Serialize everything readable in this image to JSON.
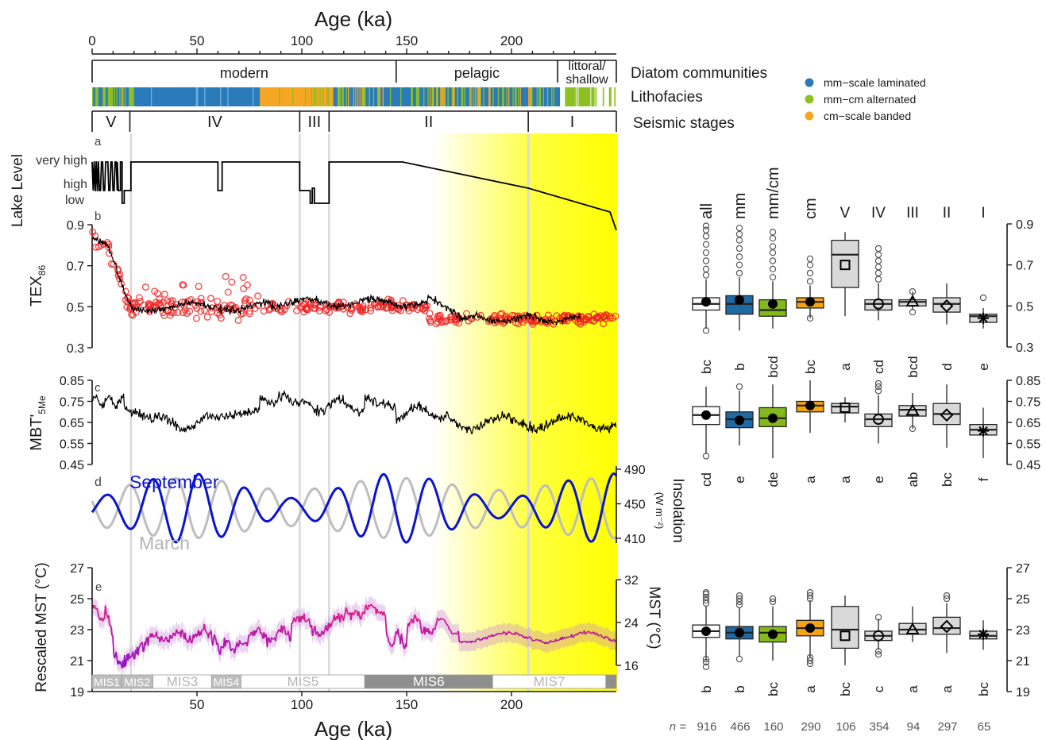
{
  "axis": {
    "top_label": "Age (ka)",
    "bottom_label": "Age (ka)",
    "age_ticks": [
      0,
      50,
      100,
      150,
      200
    ],
    "xlim": [
      0,
      250
    ]
  },
  "strip": {
    "diatom_label": "Diatom communities",
    "litho_label": "Lithofacies",
    "seismic_label": "Seismic stages",
    "diatom_sections": [
      {
        "label": "modern",
        "start": 0,
        "end": 145
      },
      {
        "label": "pelagic",
        "start": 145,
        "end": 222
      },
      {
        "label": "littoral/",
        "label2": "shallow",
        "start": 222,
        "end": 250
      }
    ],
    "seismic_stages": [
      {
        "label": "V",
        "start": 0,
        "end": 18
      },
      {
        "label": "IV",
        "start": 18,
        "end": 99
      },
      {
        "label": "III",
        "start": 99,
        "end": 113
      },
      {
        "label": "II",
        "start": 113,
        "end": 208
      },
      {
        "label": "I",
        "start": 208,
        "end": 250
      }
    ]
  },
  "legend": {
    "items": [
      {
        "label": "mm−scale laminated",
        "color": "#2b7bba"
      },
      {
        "label": "mm−cm alternated",
        "color": "#8dc021"
      },
      {
        "label": "cm−scale banded",
        "color": "#f5a623"
      }
    ]
  },
  "panels": {
    "a": {
      "letter": "a",
      "ylabel": "Lake Level",
      "levels": [
        "very high",
        "high",
        "low"
      ]
    },
    "b": {
      "letter": "b",
      "ylabel_main": "TEX",
      "ylabel_sub": "86",
      "ticks": [
        "0.9",
        "0.7",
        "0.5",
        "0.3"
      ]
    },
    "c": {
      "letter": "c",
      "ylabel_main": "MBT'",
      "ylabel_sub": "5Me",
      "ticks": [
        "0.85",
        "0.75",
        "0.65",
        "0.55",
        "0.45"
      ]
    },
    "d": {
      "letter": "d",
      "september": "September",
      "march": "March",
      "ylabel": "Insolation",
      "yunit": "(W m⁻²)",
      "ticks": [
        "490",
        "450",
        "410"
      ]
    },
    "e": {
      "letter": "e",
      "ylabel": "Rescaled MST (°C)",
      "ylabel_right": "MST (°C)",
      "ticks_left": [
        "27",
        "25",
        "23",
        "21",
        "19"
      ],
      "ticks_right": [
        "32",
        "24",
        "16"
      ]
    }
  },
  "mis": [
    {
      "label": "MIS1",
      "start": 0,
      "end": 14,
      "shade": "light"
    },
    {
      "label": "MIS2",
      "start": 14,
      "end": 29,
      "shade": "light"
    },
    {
      "label": "MIS3",
      "start": 29,
      "end": 57,
      "shade": "white"
    },
    {
      "label": "MIS4",
      "start": 57,
      "end": 71,
      "shade": "light"
    },
    {
      "label": "MIS5",
      "start": 71,
      "end": 130,
      "shade": "white"
    },
    {
      "label": "MIS6",
      "start": 130,
      "end": 191,
      "shade": "dark"
    },
    {
      "label": "MIS7",
      "start": 191,
      "end": 245,
      "shade": "white"
    },
    {
      "label": "",
      "start": 245,
      "end": 250,
      "shade": "dark"
    }
  ],
  "chart_data": {
    "type": "box",
    "groups": [
      "all",
      "mm",
      "mm/cm",
      "cm",
      "V",
      "IV",
      "III",
      "II",
      "I"
    ],
    "group_colors": [
      "#ffffff",
      "#1f6aa5",
      "#84b81b",
      "#f5a30f",
      "#d9d9d9",
      "#d9d9d9",
      "#d9d9d9",
      "#d9d9d9",
      "#d9d9d9"
    ],
    "markers": [
      "dot",
      "dot",
      "dot",
      "dot",
      "square",
      "circle",
      "triangle",
      "diamond",
      "star"
    ],
    "n_label": "n =",
    "n": [
      916,
      466,
      160,
      290,
      106,
      354,
      94,
      297,
      65
    ],
    "tex86": {
      "ylim": [
        0.3,
        0.9
      ],
      "letters": [
        "bc",
        "b",
        "bcd",
        "bc",
        "a",
        "cd",
        "bcd",
        "d",
        "e"
      ],
      "q1": [
        0.48,
        0.46,
        0.45,
        0.49,
        0.59,
        0.48,
        0.5,
        0.47,
        0.42
      ],
      "median": [
        0.51,
        0.51,
        0.48,
        0.52,
        0.75,
        0.51,
        0.52,
        0.51,
        0.45
      ],
      "q3": [
        0.54,
        0.55,
        0.53,
        0.54,
        0.82,
        0.53,
        0.53,
        0.54,
        0.46
      ],
      "mean": [
        0.52,
        0.53,
        0.51,
        0.52,
        0.7,
        0.51,
        0.52,
        0.5,
        0.44
      ],
      "wlo": [
        0.39,
        0.38,
        0.39,
        0.44,
        0.45,
        0.43,
        0.48,
        0.41,
        0.39
      ],
      "whi": [
        0.63,
        0.64,
        0.62,
        0.6,
        0.86,
        0.61,
        0.57,
        0.61,
        0.49
      ],
      "out_hi": [
        [
          0.65,
          0.68,
          0.72,
          0.76,
          0.8,
          0.84,
          0.87,
          0.89
        ],
        [
          0.66,
          0.7,
          0.74,
          0.78,
          0.82,
          0.85,
          0.88
        ],
        [
          0.64,
          0.68,
          0.72,
          0.76,
          0.79,
          0.83,
          0.86
        ],
        [
          0.62,
          0.66,
          0.7,
          0.73
        ],
        [],
        [
          0.63,
          0.66,
          0.69,
          0.72,
          0.75,
          0.78
        ],
        [
          0.57
        ],
        [],
        [
          0.54
        ]
      ],
      "out_lo": [
        [
          0.38
        ],
        [],
        [],
        [
          0.44
        ],
        [],
        [],
        [
          0.47
        ],
        [],
        []
      ]
    },
    "mbt5me": {
      "ylim": [
        0.45,
        0.85
      ],
      "letters": [
        "cd",
        "e",
        "de",
        "a",
        "a",
        "e",
        "ab",
        "bc",
        "f"
      ],
      "q1": [
        0.64,
        0.625,
        0.63,
        0.7,
        0.695,
        0.63,
        0.68,
        0.64,
        0.59
      ],
      "median": [
        0.685,
        0.665,
        0.67,
        0.73,
        0.725,
        0.665,
        0.71,
        0.69,
        0.615
      ],
      "q3": [
        0.725,
        0.7,
        0.72,
        0.75,
        0.74,
        0.69,
        0.73,
        0.74,
        0.64
      ],
      "mean": [
        0.685,
        0.66,
        0.67,
        0.73,
        0.72,
        0.665,
        0.705,
        0.685,
        0.61
      ],
      "wlo": [
        0.5,
        0.54,
        0.48,
        0.6,
        0.65,
        0.55,
        0.62,
        0.53,
        0.48
      ],
      "whi": [
        0.82,
        0.8,
        0.83,
        0.85,
        0.77,
        0.78,
        0.79,
        0.83,
        0.72
      ],
      "out_hi": [
        [],
        [
          0.82
        ],
        [],
        [],
        [],
        [
          0.8,
          0.82,
          0.835
        ],
        [],
        [],
        []
      ],
      "out_lo": [
        [
          0.49
        ],
        [],
        [],
        [],
        [],
        [],
        [
          0.62
        ],
        [],
        []
      ]
    },
    "rescaled_mst": {
      "ylim": [
        19,
        27
      ],
      "letters": [
        "b",
        "b",
        "bc",
        "a",
        "bc",
        "c",
        "a",
        "a",
        "bc"
      ],
      "q1": [
        22.5,
        22.4,
        22.2,
        22.6,
        21.8,
        22.3,
        22.7,
        22.7,
        22.4
      ],
      "median": [
        22.9,
        22.8,
        22.8,
        23.1,
        23.0,
        22.6,
        23.0,
        23.1,
        22.6
      ],
      "q3": [
        23.3,
        23.2,
        23.2,
        23.6,
        24.5,
        22.9,
        23.4,
        23.8,
        22.9
      ],
      "mean": [
        22.9,
        22.8,
        22.7,
        23.1,
        22.6,
        22.6,
        23.0,
        23.2,
        22.7
      ],
      "wlo": [
        21.0,
        21.3,
        21.0,
        21.2,
        20.7,
        21.7,
        22.2,
        21.5,
        21.7
      ],
      "whi": [
        24.5,
        24.4,
        24.5,
        24.9,
        25.2,
        23.7,
        24.5,
        24.7,
        23.6
      ],
      "out_hi": [
        [
          24.7,
          24.9,
          25.1,
          25.3,
          25.4
        ],
        [
          24.6,
          24.8,
          25.0,
          25.2
        ],
        [
          24.8,
          25.0
        ],
        [
          25.0,
          25.2,
          25.4
        ],
        [],
        [
          23.8
        ],
        [],
        [
          25.0,
          25.2
        ],
        []
      ],
      "out_lo": [
        [
          20.6,
          20.9,
          21.1
        ],
        [
          21.1
        ],
        [],
        [
          20.8,
          21.0,
          21.2
        ],
        [],
        [
          21.4,
          21.6
        ],
        [],
        [],
        []
      ]
    }
  }
}
